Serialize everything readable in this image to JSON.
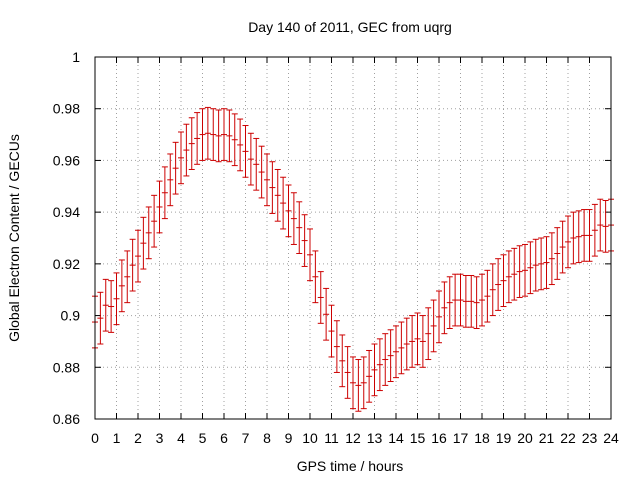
{
  "chart_data": {
    "type": "line",
    "title": "Day 140 of 2011, GEC from uqrg",
    "xlabel": "GPS time / hours",
    "ylabel": "Global Electron Content / GECUs",
    "xlim": [
      0,
      24
    ],
    "ylim": [
      0.86,
      1.0
    ],
    "grid": true,
    "xticks": [
      0,
      1,
      2,
      3,
      4,
      5,
      6,
      7,
      8,
      9,
      10,
      11,
      12,
      13,
      14,
      15,
      16,
      17,
      18,
      19,
      20,
      21,
      22,
      23,
      24
    ],
    "xtick_labels": [
      "0",
      "1",
      "2",
      "3",
      "4",
      "5",
      "6",
      "7",
      "8",
      "9",
      "10",
      "11",
      "12",
      "13",
      "14",
      "15",
      "16",
      "17",
      "18",
      "19",
      "20",
      "21",
      "22",
      "23",
      "24"
    ],
    "yticks": [
      0.86,
      0.88,
      0.9,
      0.92,
      0.94,
      0.96,
      0.98,
      1.0
    ],
    "ytick_labels": [
      "0.86",
      "0.88",
      "0.9",
      "0.92",
      "0.94",
      "0.96",
      "0.98",
      "1"
    ],
    "series": [
      {
        "name": "GEC",
        "color": "#cc0000",
        "x_step": 0.25,
        "error": 0.01,
        "values": [
          0.8975,
          0.899,
          0.904,
          0.9035,
          0.9065,
          0.9115,
          0.915,
          0.9195,
          0.923,
          0.928,
          0.932,
          0.9365,
          0.942,
          0.9475,
          0.9525,
          0.957,
          0.961,
          0.964,
          0.9665,
          0.9685,
          0.97,
          0.9705,
          0.97,
          0.9695,
          0.97,
          0.9695,
          0.968,
          0.966,
          0.9635,
          0.9605,
          0.9585,
          0.9555,
          0.9525,
          0.9495,
          0.9465,
          0.9435,
          0.9405,
          0.9375,
          0.934,
          0.929,
          0.9235,
          0.915,
          0.907,
          0.9005,
          0.894,
          0.888,
          0.8825,
          0.878,
          0.874,
          0.873,
          0.874,
          0.8765,
          0.879,
          0.881,
          0.883,
          0.8845,
          0.886,
          0.8875,
          0.889,
          0.89,
          0.891,
          0.89,
          0.893,
          0.896,
          0.8995,
          0.903,
          0.905,
          0.906,
          0.906,
          0.9055,
          0.9055,
          0.905,
          0.906,
          0.9075,
          0.91,
          0.912,
          0.9135,
          0.915,
          0.916,
          0.917,
          0.9175,
          0.9185,
          0.9195,
          0.92,
          0.9205,
          0.922,
          0.924,
          0.9265,
          0.9285,
          0.93,
          0.9305,
          0.931,
          0.931,
          0.933,
          0.935,
          0.9345,
          0.935
        ]
      }
    ]
  }
}
